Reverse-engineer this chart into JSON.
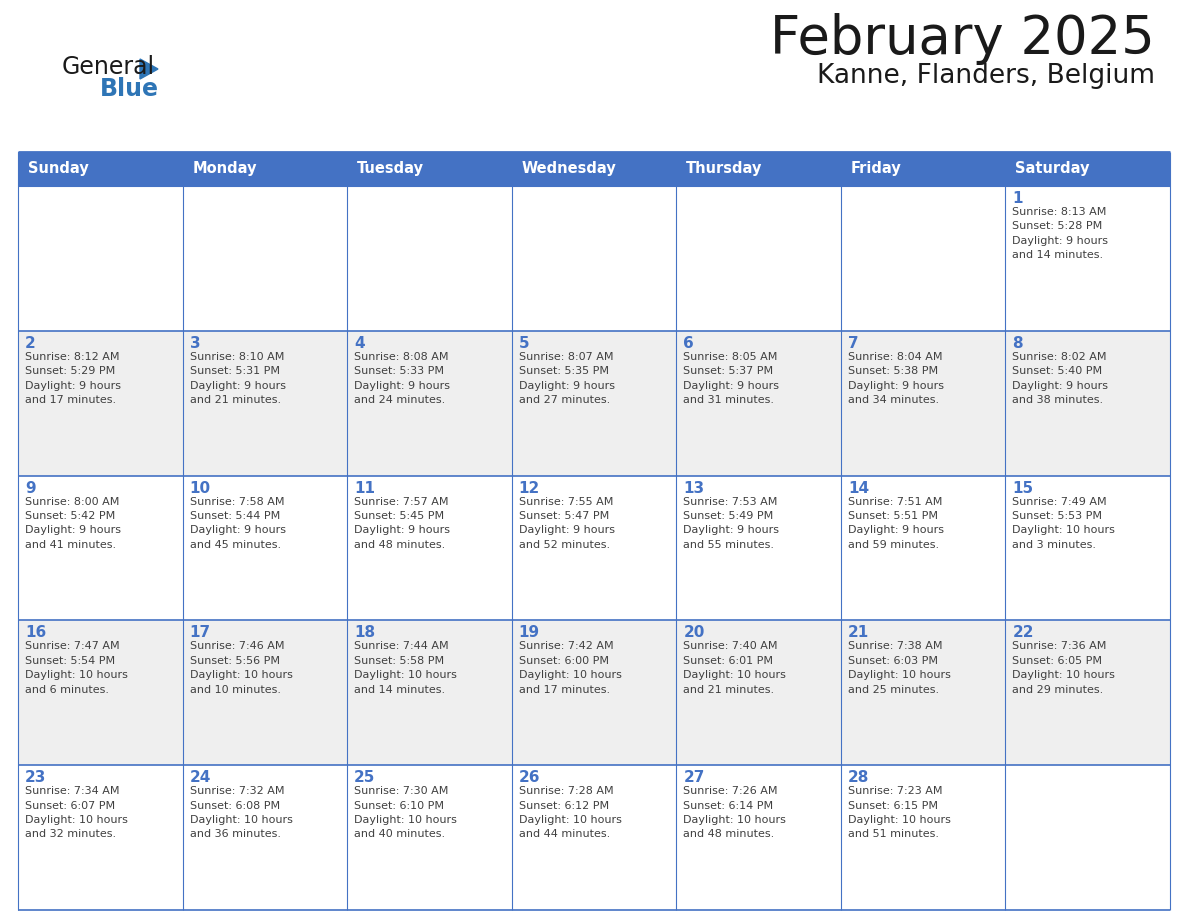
{
  "title": "February 2025",
  "subtitle": "Kanne, Flanders, Belgium",
  "days_of_week": [
    "Sunday",
    "Monday",
    "Tuesday",
    "Wednesday",
    "Thursday",
    "Friday",
    "Saturday"
  ],
  "header_bg": "#4472C4",
  "header_text": "#FFFFFF",
  "cell_bg_odd": "#FFFFFF",
  "cell_bg_even": "#EFEFEF",
  "cell_border": "#4472C4",
  "day_number_color": "#4472C4",
  "info_text_color": "#404040",
  "title_color": "#1a1a1a",
  "subtitle_color": "#1a1a1a",
  "logo_general_color": "#1a1a1a",
  "logo_blue_color": "#2E75B6",
  "logo_triangle_color": "#2E75B6",
  "weeks": [
    [
      {
        "day": null,
        "info": ""
      },
      {
        "day": null,
        "info": ""
      },
      {
        "day": null,
        "info": ""
      },
      {
        "day": null,
        "info": ""
      },
      {
        "day": null,
        "info": ""
      },
      {
        "day": null,
        "info": ""
      },
      {
        "day": 1,
        "info": "Sunrise: 8:13 AM\nSunset: 5:28 PM\nDaylight: 9 hours\nand 14 minutes."
      }
    ],
    [
      {
        "day": 2,
        "info": "Sunrise: 8:12 AM\nSunset: 5:29 PM\nDaylight: 9 hours\nand 17 minutes."
      },
      {
        "day": 3,
        "info": "Sunrise: 8:10 AM\nSunset: 5:31 PM\nDaylight: 9 hours\nand 21 minutes."
      },
      {
        "day": 4,
        "info": "Sunrise: 8:08 AM\nSunset: 5:33 PM\nDaylight: 9 hours\nand 24 minutes."
      },
      {
        "day": 5,
        "info": "Sunrise: 8:07 AM\nSunset: 5:35 PM\nDaylight: 9 hours\nand 27 minutes."
      },
      {
        "day": 6,
        "info": "Sunrise: 8:05 AM\nSunset: 5:37 PM\nDaylight: 9 hours\nand 31 minutes."
      },
      {
        "day": 7,
        "info": "Sunrise: 8:04 AM\nSunset: 5:38 PM\nDaylight: 9 hours\nand 34 minutes."
      },
      {
        "day": 8,
        "info": "Sunrise: 8:02 AM\nSunset: 5:40 PM\nDaylight: 9 hours\nand 38 minutes."
      }
    ],
    [
      {
        "day": 9,
        "info": "Sunrise: 8:00 AM\nSunset: 5:42 PM\nDaylight: 9 hours\nand 41 minutes."
      },
      {
        "day": 10,
        "info": "Sunrise: 7:58 AM\nSunset: 5:44 PM\nDaylight: 9 hours\nand 45 minutes."
      },
      {
        "day": 11,
        "info": "Sunrise: 7:57 AM\nSunset: 5:45 PM\nDaylight: 9 hours\nand 48 minutes."
      },
      {
        "day": 12,
        "info": "Sunrise: 7:55 AM\nSunset: 5:47 PM\nDaylight: 9 hours\nand 52 minutes."
      },
      {
        "day": 13,
        "info": "Sunrise: 7:53 AM\nSunset: 5:49 PM\nDaylight: 9 hours\nand 55 minutes."
      },
      {
        "day": 14,
        "info": "Sunrise: 7:51 AM\nSunset: 5:51 PM\nDaylight: 9 hours\nand 59 minutes."
      },
      {
        "day": 15,
        "info": "Sunrise: 7:49 AM\nSunset: 5:53 PM\nDaylight: 10 hours\nand 3 minutes."
      }
    ],
    [
      {
        "day": 16,
        "info": "Sunrise: 7:47 AM\nSunset: 5:54 PM\nDaylight: 10 hours\nand 6 minutes."
      },
      {
        "day": 17,
        "info": "Sunrise: 7:46 AM\nSunset: 5:56 PM\nDaylight: 10 hours\nand 10 minutes."
      },
      {
        "day": 18,
        "info": "Sunrise: 7:44 AM\nSunset: 5:58 PM\nDaylight: 10 hours\nand 14 minutes."
      },
      {
        "day": 19,
        "info": "Sunrise: 7:42 AM\nSunset: 6:00 PM\nDaylight: 10 hours\nand 17 minutes."
      },
      {
        "day": 20,
        "info": "Sunrise: 7:40 AM\nSunset: 6:01 PM\nDaylight: 10 hours\nand 21 minutes."
      },
      {
        "day": 21,
        "info": "Sunrise: 7:38 AM\nSunset: 6:03 PM\nDaylight: 10 hours\nand 25 minutes."
      },
      {
        "day": 22,
        "info": "Sunrise: 7:36 AM\nSunset: 6:05 PM\nDaylight: 10 hours\nand 29 minutes."
      }
    ],
    [
      {
        "day": 23,
        "info": "Sunrise: 7:34 AM\nSunset: 6:07 PM\nDaylight: 10 hours\nand 32 minutes."
      },
      {
        "day": 24,
        "info": "Sunrise: 7:32 AM\nSunset: 6:08 PM\nDaylight: 10 hours\nand 36 minutes."
      },
      {
        "day": 25,
        "info": "Sunrise: 7:30 AM\nSunset: 6:10 PM\nDaylight: 10 hours\nand 40 minutes."
      },
      {
        "day": 26,
        "info": "Sunrise: 7:28 AM\nSunset: 6:12 PM\nDaylight: 10 hours\nand 44 minutes."
      },
      {
        "day": 27,
        "info": "Sunrise: 7:26 AM\nSunset: 6:14 PM\nDaylight: 10 hours\nand 48 minutes."
      },
      {
        "day": 28,
        "info": "Sunrise: 7:23 AM\nSunset: 6:15 PM\nDaylight: 10 hours\nand 51 minutes."
      },
      {
        "day": null,
        "info": ""
      }
    ]
  ]
}
